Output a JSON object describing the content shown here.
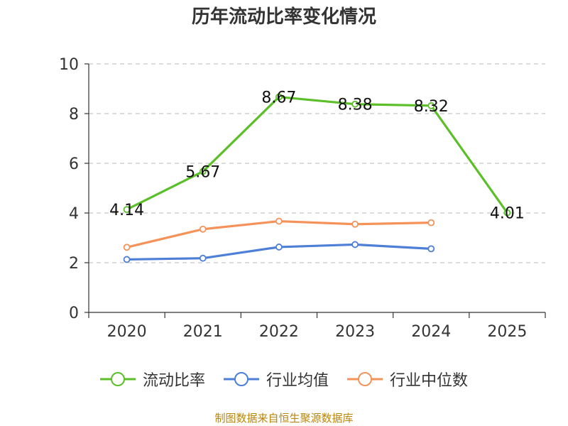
{
  "chart_data": {
    "type": "line",
    "title": "历年流动比率变化情况",
    "categories": [
      "2020",
      "2021",
      "2022",
      "2023",
      "2024",
      "2025"
    ],
    "ylim": [
      0,
      10
    ],
    "yticks": [
      0,
      2,
      4,
      6,
      8,
      10
    ],
    "grid": true,
    "legend_position": "bottom",
    "series": [
      {
        "name": "流动比率",
        "color": "#5cbf2a",
        "values": [
          4.14,
          5.67,
          8.67,
          8.38,
          8.32,
          4.01
        ],
        "labels": [
          "4.14",
          "5.67",
          "8.67",
          "8.38",
          "8.32",
          "4.01"
        ]
      },
      {
        "name": "行业均值",
        "color": "#4d7fd6",
        "values": [
          2.13,
          2.18,
          2.63,
          2.73,
          2.56,
          null
        ]
      },
      {
        "name": "行业中位数",
        "color": "#f4925a",
        "values": [
          2.62,
          3.35,
          3.67,
          3.55,
          3.61,
          null
        ]
      }
    ]
  },
  "source": "制图数据来自恒生聚源数据库"
}
